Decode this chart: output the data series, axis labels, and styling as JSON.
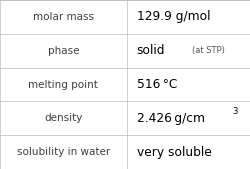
{
  "rows": [
    {
      "label": "molar mass",
      "value": "129.9 g/mol",
      "type": "plain"
    },
    {
      "label": "phase",
      "value": "solid",
      "value_suffix": "(at STP)",
      "type": "phase"
    },
    {
      "label": "melting point",
      "value": "516 °C",
      "type": "plain"
    },
    {
      "label": "density",
      "value": "2.426 g/cm",
      "superscript": "3",
      "type": "super"
    },
    {
      "label": "solubility in water",
      "value": "very soluble",
      "type": "plain"
    }
  ],
  "col_split": 0.505,
  "background": "#ffffff",
  "line_color": "#bbbbbb",
  "label_fontsize": 7.5,
  "value_fontsize": 8.8,
  "label_color": "#404040",
  "value_color": "#000000",
  "suffix_fontsize": 6.0,
  "suffix_color": "#555555",
  "super_fontsize": 6.0
}
